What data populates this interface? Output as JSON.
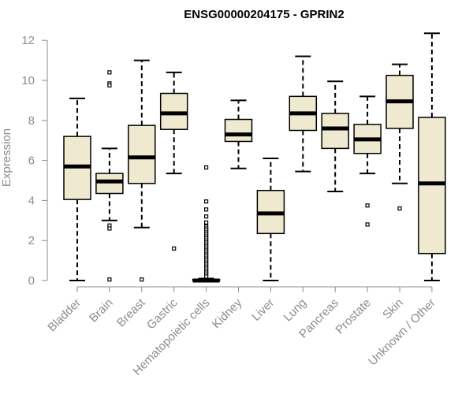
{
  "chart_data": {
    "type": "boxplot",
    "title": "ENSG00000204175 - GPRIN2",
    "xlabel": "",
    "ylabel": "Expression",
    "ylim": [
      0,
      12.5
    ],
    "yticks": [
      0,
      2,
      4,
      6,
      8,
      10,
      12
    ],
    "grid": false,
    "legend": "none",
    "colors": {
      "box_fill": "#efe9d0",
      "stroke": "#000000",
      "axis_text": "#8c8c8c"
    },
    "categories": [
      "Bladder",
      "Brain",
      "Breast",
      "Gastric",
      "Hematopoietic cells",
      "Kidney",
      "Liver",
      "Lung",
      "Pancreas",
      "Prostate",
      "Skin",
      "Unknown / Other"
    ],
    "boxes": [
      {
        "label": "Bladder",
        "min": 0,
        "q1": 4.05,
        "median": 5.7,
        "q3": 7.2,
        "max": 9.1,
        "outliers": []
      },
      {
        "label": "Brain",
        "min": 3.0,
        "q1": 4.35,
        "median": 4.95,
        "q3": 5.35,
        "max": 6.6,
        "outliers": [
          10.4,
          9.85,
          9.75,
          2.75,
          2.6,
          0.05
        ]
      },
      {
        "label": "Breast",
        "min": 2.65,
        "q1": 4.85,
        "median": 6.15,
        "q3": 7.75,
        "max": 11.0,
        "outliers": [
          0.05
        ]
      },
      {
        "label": "Gastric",
        "min": 5.35,
        "q1": 7.55,
        "median": 8.35,
        "q3": 9.35,
        "max": 10.4,
        "outliers": [
          1.6
        ]
      },
      {
        "label": "Hematopoietic cells",
        "min": 0,
        "q1": 0,
        "median": 0,
        "q3": 0.05,
        "max": 0.1,
        "outliers": [
          5.65,
          3.95,
          3.55,
          3.2,
          2.9,
          2.7,
          2.6,
          2.5,
          2.4,
          2.3,
          2.2,
          2.1,
          2.0,
          1.9,
          1.8,
          1.7,
          1.6,
          1.5,
          1.4,
          1.3,
          1.2,
          1.1,
          1.0,
          0.9,
          0.8,
          0.7,
          0.6,
          0.5,
          0.4,
          0.3,
          0.2
        ]
      },
      {
        "label": "Kidney",
        "min": 5.6,
        "q1": 6.95,
        "median": 7.3,
        "q3": 8.05,
        "max": 9.0,
        "outliers": []
      },
      {
        "label": "Liver",
        "min": 0,
        "q1": 2.35,
        "median": 3.35,
        "q3": 4.5,
        "max": 6.1,
        "outliers": []
      },
      {
        "label": "Lung",
        "min": 5.45,
        "q1": 7.5,
        "median": 8.35,
        "q3": 9.2,
        "max": 11.2,
        "outliers": []
      },
      {
        "label": "Pancreas",
        "min": 4.45,
        "q1": 6.6,
        "median": 7.6,
        "q3": 8.35,
        "max": 9.95,
        "outliers": []
      },
      {
        "label": "Prostate",
        "min": 5.35,
        "q1": 6.35,
        "median": 7.05,
        "q3": 7.8,
        "max": 9.2,
        "outliers": [
          3.75,
          2.8
        ]
      },
      {
        "label": "Skin",
        "min": 4.85,
        "q1": 7.6,
        "median": 8.95,
        "q3": 10.25,
        "max": 10.8,
        "outliers": [
          3.6
        ]
      },
      {
        "label": "Unknown / Other",
        "min": 0,
        "q1": 1.35,
        "median": 4.85,
        "q3": 8.15,
        "max": 12.35,
        "outliers": []
      }
    ]
  }
}
